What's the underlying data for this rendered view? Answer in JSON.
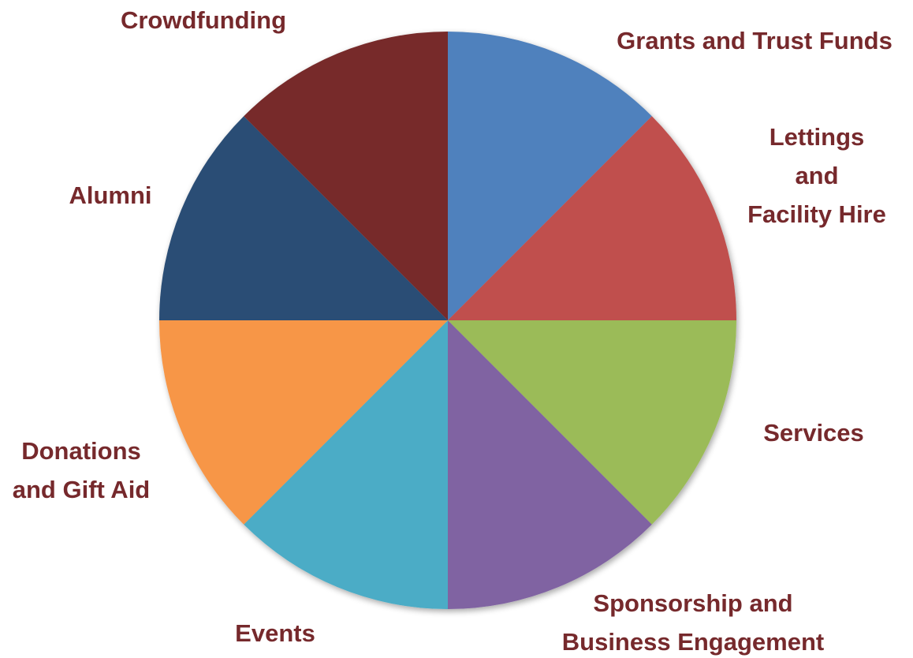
{
  "chart_data": {
    "type": "pie",
    "title": "",
    "label_color": "#76292C",
    "slices": [
      {
        "label_lines": [
          "Grants and Trust Funds"
        ],
        "value": 12.5,
        "color": "#4F81BD"
      },
      {
        "label_lines": [
          "Lettings",
          "and",
          "Facility Hire"
        ],
        "value": 12.5,
        "color": "#C0504D"
      },
      {
        "label_lines": [
          "Services"
        ],
        "value": 12.5,
        "color": "#9BBB59"
      },
      {
        "label_lines": [
          "Sponsorship and",
          "Business Engagement"
        ],
        "value": 12.5,
        "color": "#8064A2"
      },
      {
        "label_lines": [
          "Events"
        ],
        "value": 12.5,
        "color": "#4BACC6"
      },
      {
        "label_lines": [
          "Donations",
          "and Gift Aid"
        ],
        "value": 12.5,
        "color": "#F79646"
      },
      {
        "label_lines": [
          "Alumni"
        ],
        "value": 12.5,
        "color": "#2C4D75"
      },
      {
        "label_lines": [
          "Crowdfunding"
        ],
        "value": 12.5,
        "color": "#772C2A"
      }
    ]
  }
}
